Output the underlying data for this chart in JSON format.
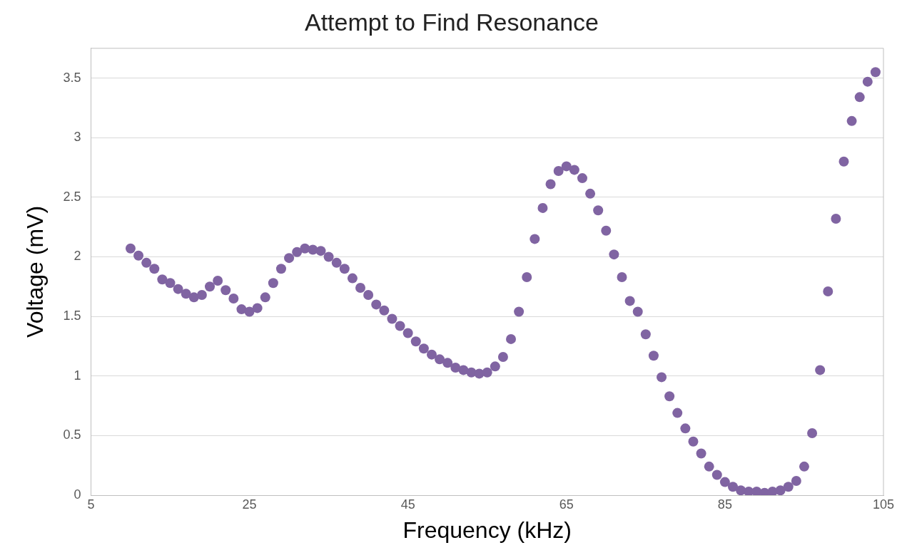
{
  "chart_data": {
    "type": "scatter",
    "title": "Attempt to Find Resonance",
    "xlabel": "Frequency (kHz)",
    "ylabel": "Voltage (mV)",
    "x": [
      10,
      11,
      12,
      13,
      14,
      15,
      16,
      17,
      18,
      19,
      20,
      21,
      22,
      23,
      24,
      25,
      26,
      27,
      28,
      29,
      30,
      31,
      32,
      33,
      34,
      35,
      36,
      37,
      38,
      39,
      40,
      41,
      42,
      43,
      44,
      45,
      46,
      47,
      48,
      49,
      50,
      51,
      52,
      53,
      54,
      55,
      56,
      57,
      58,
      59,
      60,
      61,
      62,
      63,
      64,
      65,
      66,
      67,
      68,
      69,
      70,
      71,
      72,
      73,
      74,
      75,
      76,
      77,
      78,
      79,
      80,
      81,
      82,
      83,
      84,
      85,
      86,
      87,
      88,
      89,
      90,
      91,
      92,
      93,
      94,
      95,
      96,
      97,
      98,
      99,
      100,
      101,
      102,
      103,
      104
    ],
    "series": [
      {
        "color": "#8064a2",
        "values": [
          2.07,
          2.01,
          1.95,
          1.9,
          1.81,
          1.78,
          1.73,
          1.69,
          1.66,
          1.68,
          1.75,
          1.8,
          1.72,
          1.65,
          1.56,
          1.54,
          1.57,
          1.66,
          1.78,
          1.9,
          1.99,
          2.04,
          2.07,
          2.06,
          2.05,
          2.0,
          1.95,
          1.9,
          1.82,
          1.74,
          1.68,
          1.6,
          1.55,
          1.48,
          1.42,
          1.36,
          1.29,
          1.23,
          1.18,
          1.14,
          1.11,
          1.07,
          1.05,
          1.03,
          1.02,
          1.03,
          1.08,
          1.16,
          1.31,
          1.54,
          1.83,
          2.15,
          2.41,
          2.61,
          2.72,
          2.76,
          2.73,
          2.66,
          2.53,
          2.39,
          2.22,
          2.02,
          1.83,
          1.63,
          1.54,
          1.35,
          1.17,
          0.99,
          0.83,
          0.69,
          0.56,
          0.45,
          0.35,
          0.24,
          0.17,
          0.11,
          0.07,
          0.04,
          0.03,
          0.03,
          0.02,
          0.03,
          0.04,
          0.07,
          0.12,
          0.24,
          0.52,
          1.05,
          1.71,
          2.32,
          2.8,
          3.14,
          3.34,
          3.47,
          3.55
        ]
      }
    ],
    "xlim": [
      5,
      105
    ],
    "xticks": [
      5,
      25,
      45,
      65,
      85,
      105
    ],
    "ylim": [
      0,
      3.75
    ],
    "yticks": [
      0,
      0.5,
      1,
      1.5,
      2,
      2.5,
      3,
      3.5
    ],
    "grid": "y",
    "marker": "circle",
    "legend": false
  }
}
